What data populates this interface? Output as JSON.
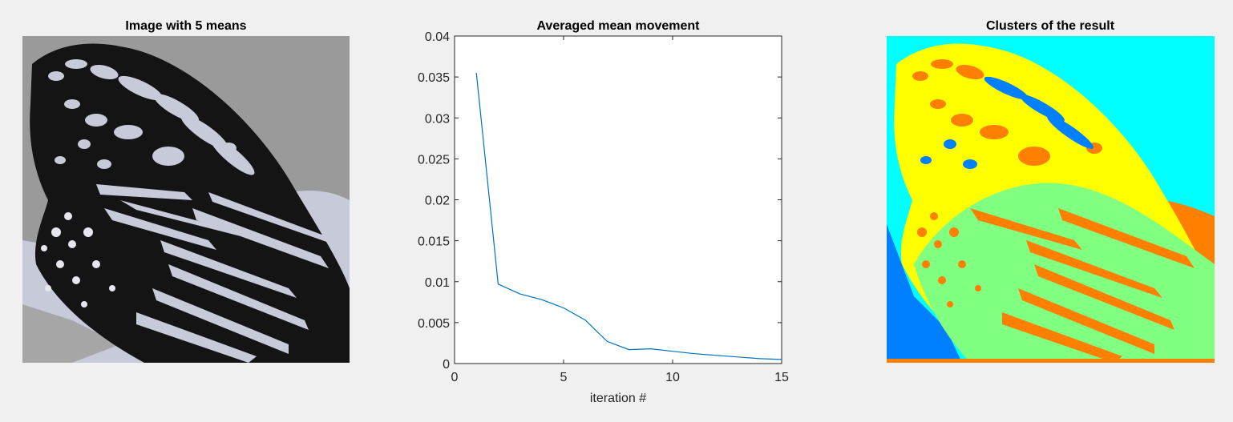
{
  "panels": {
    "left": {
      "title": "Image with 5 means"
    },
    "right": {
      "title": "Clusters of the result"
    }
  },
  "chart_data": {
    "type": "line",
    "title": "Averaged mean movement",
    "xlabel": "iteration #",
    "ylabel": "",
    "xlim": [
      0,
      15
    ],
    "ylim": [
      0,
      0.04
    ],
    "xticks": [
      0,
      5,
      10,
      15
    ],
    "yticks": [
      0,
      0.005,
      0.01,
      0.015,
      0.02,
      0.025,
      0.03,
      0.035,
      0.04
    ],
    "xtick_labels": [
      "0",
      "5",
      "10",
      "15"
    ],
    "ytick_labels": [
      "0",
      "0.005",
      "0.01",
      "0.015",
      "0.02",
      "0.025",
      "0.03",
      "0.035",
      "0.04"
    ],
    "grid": false,
    "series": [
      {
        "color": "#0072bd",
        "x": [
          1,
          2,
          3,
          4,
          5,
          6,
          7,
          8,
          9,
          10,
          11,
          12,
          13,
          14,
          15
        ],
        "y": [
          0.0355,
          0.0097,
          0.0085,
          0.0078,
          0.0068,
          0.0053,
          0.0027,
          0.0017,
          0.0018,
          0.0015,
          0.0012,
          0.001,
          0.0008,
          0.0006,
          0.0005
        ]
      }
    ]
  },
  "colors": {
    "line": "#0072bd",
    "figure_bg": "#f0f0f0",
    "gray_palette": [
      "#9a9a9a",
      "#c7cad9",
      "#a6a6a6",
      "#141414",
      "#e6e6ee"
    ],
    "cluster_palette": [
      "#00ffff",
      "#ffff00",
      "#ff7f00",
      "#80ff80",
      "#0080ff"
    ]
  }
}
